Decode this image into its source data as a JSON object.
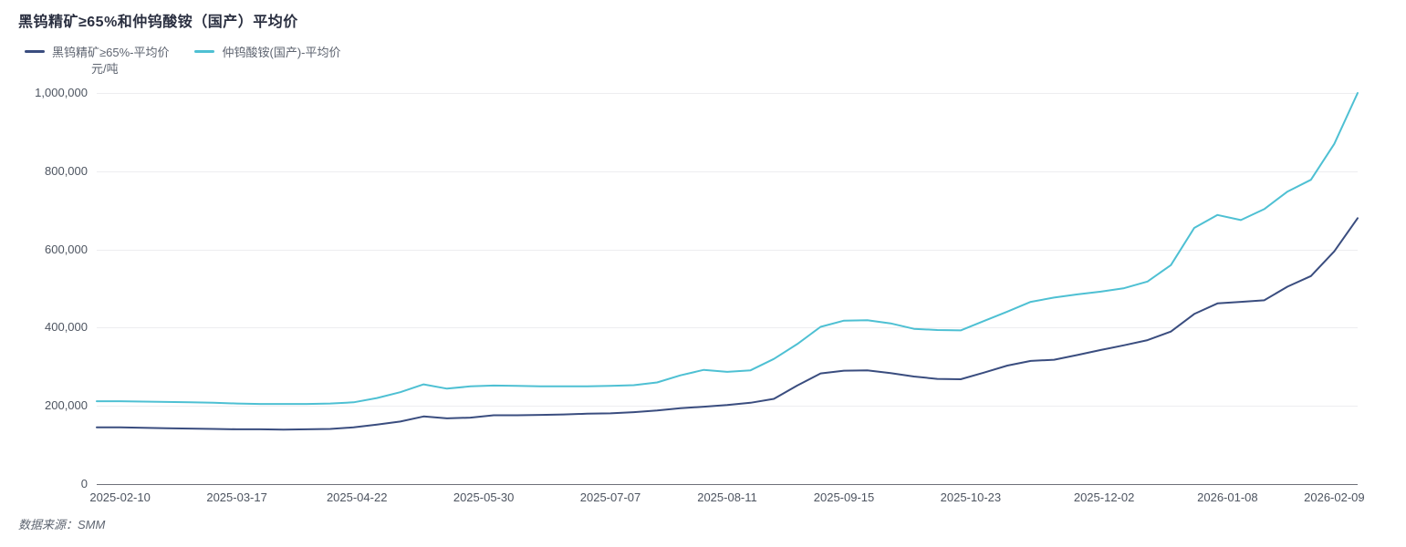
{
  "footer": {
    "source_text": "数据来源：SMM"
  },
  "chart_data": {
    "type": "line",
    "title": "黑钨精矿≥65%和仲钨酸铵（国产）平均价",
    "y_unit": "元/吨",
    "ylim": [
      0,
      1000000
    ],
    "yticks": [
      "1,000,000",
      "800,000",
      "600,000",
      "400,000",
      "200,000",
      "0"
    ],
    "xticks": [
      "2025-02-10",
      "2025-03-17",
      "2025-04-22",
      "2025-05-30",
      "2025-07-07",
      "2025-08-11",
      "2025-09-15",
      "2025-10-23",
      "2025-12-02",
      "2026-01-08",
      "2026-02-09"
    ],
    "x": [
      "2025-02-03",
      "2025-02-10",
      "2025-02-17",
      "2025-02-24",
      "2025-03-03",
      "2025-03-10",
      "2025-03-17",
      "2025-03-24",
      "2025-03-31",
      "2025-04-07",
      "2025-04-14",
      "2025-04-21",
      "2025-04-28",
      "2025-05-05",
      "2025-05-12",
      "2025-05-19",
      "2025-05-26",
      "2025-06-02",
      "2025-06-09",
      "2025-06-16",
      "2025-06-23",
      "2025-06-30",
      "2025-07-07",
      "2025-07-14",
      "2025-07-21",
      "2025-07-28",
      "2025-08-04",
      "2025-08-11",
      "2025-08-18",
      "2025-08-25",
      "2025-09-01",
      "2025-09-08",
      "2025-09-15",
      "2025-09-22",
      "2025-09-29",
      "2025-10-06",
      "2025-10-13",
      "2025-10-20",
      "2025-10-27",
      "2025-11-03",
      "2025-11-10",
      "2025-11-17",
      "2025-11-24",
      "2025-12-01",
      "2025-12-08",
      "2025-12-15",
      "2025-12-22",
      "2025-12-29",
      "2026-01-05",
      "2026-01-12",
      "2026-01-19",
      "2026-01-26",
      "2026-02-02",
      "2026-02-09",
      "2026-02-16"
    ],
    "series": [
      {
        "name": "黑钨精矿≥65%-平均价",
        "color": "#3a4d7f",
        "values": [
          145000,
          145000,
          144000,
          143000,
          142000,
          141000,
          140000,
          140000,
          139500,
          140000,
          141000,
          145000,
          152000,
          160000,
          173000,
          168000,
          170000,
          176000,
          176000,
          177000,
          178000,
          180000,
          181000,
          184000,
          188000,
          194000,
          198000,
          202000,
          208000,
          218000,
          252000,
          283000,
          290000,
          291000,
          284000,
          275000,
          269000,
          268000,
          285000,
          303000,
          315000,
          318000,
          330000,
          343000,
          355000,
          368000,
          390000,
          435000,
          462000,
          466000,
          470000,
          505000,
          532000,
          595000,
          680000
        ]
      },
      {
        "name": "仲钨酸铵(国产)-平均价",
        "color": "#4ec0d3",
        "values": [
          212000,
          212000,
          211000,
          210000,
          209000,
          208000,
          206000,
          205000,
          205000,
          205000,
          206000,
          209000,
          220000,
          235000,
          255000,
          244000,
          250000,
          252000,
          251000,
          250000,
          250000,
          250000,
          251000,
          253000,
          260000,
          278000,
          292000,
          287000,
          291000,
          320000,
          358000,
          402000,
          418000,
          419000,
          411000,
          397000,
          394000,
          393000,
          417000,
          441000,
          466000,
          477000,
          485000,
          492000,
          501000,
          518000,
          560000,
          655000,
          688000,
          675000,
          703000,
          748000,
          778000,
          870000,
          1000000
        ]
      }
    ],
    "legend_position": "top-left",
    "grid": true,
    "grid_color": "#ededf0",
    "axis_line_color": "#6e7079"
  }
}
